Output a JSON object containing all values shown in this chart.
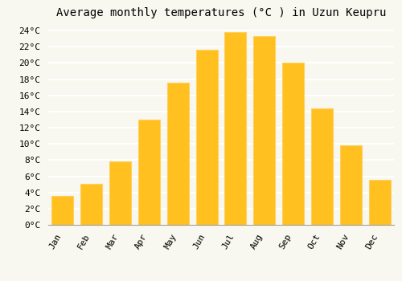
{
  "title": "Average monthly temperatures (°C ) in Uzun Keupru",
  "months": [
    "Jan",
    "Feb",
    "Mar",
    "Apr",
    "May",
    "Jun",
    "Jul",
    "Aug",
    "Sep",
    "Oct",
    "Nov",
    "Dec"
  ],
  "values": [
    3.6,
    5.1,
    7.8,
    13.0,
    17.6,
    21.6,
    23.8,
    23.3,
    20.0,
    14.4,
    9.8,
    5.6
  ],
  "bar_color": "#FFC020",
  "bar_edge_color": "#FFD060",
  "ylim": [
    0,
    25
  ],
  "ytick_step": 2,
  "background_color": "#F8F8F0",
  "plot_bg_color": "#F8F8F0",
  "grid_color": "#FFFFFF",
  "title_fontsize": 10,
  "tick_fontsize": 8,
  "font_family": "monospace"
}
